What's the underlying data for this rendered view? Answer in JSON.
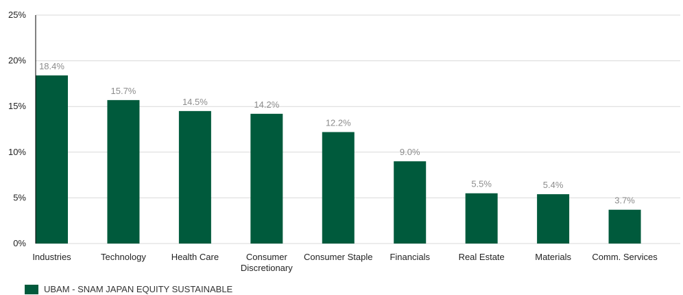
{
  "chart_data": {
    "type": "bar",
    "categories": [
      "Industries",
      "Technology",
      "Health Care",
      "Consumer\nDiscretionary",
      "Consumer Staple",
      "Financials",
      "Real Estate",
      "Materials",
      "Comm. Services"
    ],
    "series": [
      {
        "name": "UBAM - SNAM JAPAN EQUITY SUSTAINABLE",
        "values": [
          18.4,
          15.7,
          14.5,
          14.2,
          12.2,
          9.0,
          5.5,
          5.4,
          3.7
        ],
        "data_labels": [
          "18.4%",
          "15.7%",
          "14.5%",
          "14.2%",
          "12.2%",
          "9.0%",
          "5.5%",
          "5.4%",
          "3.7%"
        ]
      }
    ],
    "y_ticks": [
      0,
      5,
      10,
      15,
      20,
      25
    ],
    "y_tick_labels": [
      "0%",
      "5%",
      "10%",
      "15%",
      "20%",
      "25%"
    ],
    "ylim": [
      0,
      25
    ],
    "grid": true,
    "legend": "bottom-left",
    "colors": {
      "bar": "#005a3c",
      "grid": "#d9d9d9",
      "axis": "#000000",
      "label": "#222222",
      "value_label": "#8c8c8c"
    }
  }
}
